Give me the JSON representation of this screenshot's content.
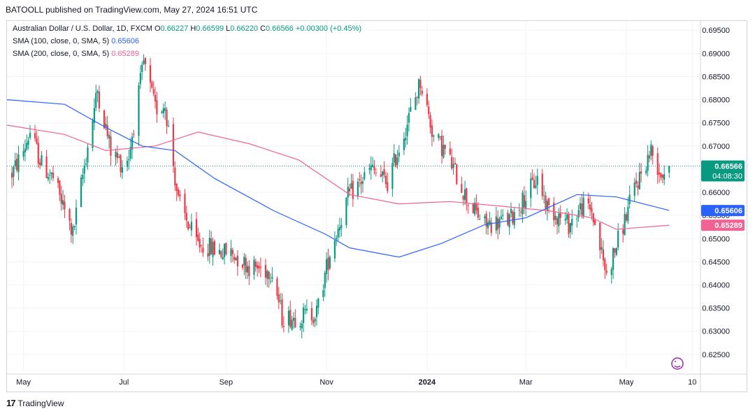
{
  "publisher_line": "BATOOLL published on TradingView.com, May 27, 2024 16:51 UTC",
  "legend": {
    "symbol_line": "Australian Dollar / U.S. Dollar, 1D, FXCM",
    "o_label": "O",
    "o": "0.66227",
    "h_label": "H",
    "h": "0.66599",
    "l_label": "L",
    "l": "0.66220",
    "c_label": "C",
    "c": "0.66566",
    "change": "+0.00300 (+0.45%)",
    "sma100_label": "SMA (100, close, 0, SMA, 5)",
    "sma100_value": "0.65606",
    "sma200_label": "SMA (200, close, 0, SMA, 5)",
    "sma200_value": "0.65289"
  },
  "price_badge": {
    "price": "0.66566",
    "countdown": "04:08:30"
  },
  "footer": {
    "brand_text": "TradingView",
    "logo_glyph": "17"
  },
  "colors": {
    "up": "#089981",
    "down": "#f23645",
    "sma100": "#2962ff",
    "sma200": "#f06292",
    "grid": "#f0f3fa"
  },
  "chart_data": {
    "type": "candlestick",
    "symbol": "AUDUSD",
    "timeframe": "1D",
    "y_ticks": [
      "0.69500",
      "0.69000",
      "0.68500",
      "0.68000",
      "0.67500",
      "0.67000",
      "0.66500",
      "0.66000",
      "0.65500",
      "0.65000",
      "0.64500",
      "0.64000",
      "0.63500",
      "0.63000",
      "0.62500"
    ],
    "ylim": [
      0.6215,
      0.697
    ],
    "x_ticks": [
      "May",
      "Jul",
      "Sep",
      "Nov",
      "2024",
      "Mar",
      "May",
      "10"
    ],
    "x_tick_bold": [
      false,
      false,
      false,
      false,
      true,
      false,
      false,
      false
    ],
    "x_tick_dates": [
      "2023-05-01",
      "2023-07-01",
      "2023-09-01",
      "2023-11-01",
      "2024-01-01",
      "2024-03-01",
      "2024-05-01",
      "2024-06-10"
    ],
    "xlim": [
      "2023-04-21",
      "2024-06-15"
    ],
    "price_path": [
      [
        "2023-04-24",
        0.664
      ],
      [
        "2023-05-01",
        0.669
      ],
      [
        "2023-05-05",
        0.673
      ],
      [
        "2023-05-12",
        0.666
      ],
      [
        "2023-05-19",
        0.663
      ],
      [
        "2023-05-31",
        0.651
      ],
      [
        "2023-06-09",
        0.67
      ],
      [
        "2023-06-15",
        0.682
      ],
      [
        "2023-06-23",
        0.669
      ],
      [
        "2023-06-30",
        0.666
      ],
      [
        "2023-07-04",
        0.668
      ],
      [
        "2023-07-13",
        0.688
      ],
      [
        "2023-07-20",
        0.678
      ],
      [
        "2023-07-26",
        0.679
      ],
      [
        "2023-08-03",
        0.658
      ],
      [
        "2023-08-14",
        0.649
      ],
      [
        "2023-08-30",
        0.647
      ],
      [
        "2023-09-04",
        0.647
      ],
      [
        "2023-09-15",
        0.644
      ],
      [
        "2023-09-29",
        0.643
      ],
      [
        "2023-10-05",
        0.633
      ],
      [
        "2023-10-13",
        0.633
      ],
      [
        "2023-10-26",
        0.634
      ],
      [
        "2023-11-03",
        0.647
      ],
      [
        "2023-11-14",
        0.659
      ],
      [
        "2023-11-28",
        0.665
      ],
      [
        "2023-12-08",
        0.662
      ],
      [
        "2023-12-20",
        0.675
      ],
      [
        "2023-12-28",
        0.684
      ],
      [
        "2024-01-05",
        0.672
      ],
      [
        "2024-01-12",
        0.669
      ],
      [
        "2024-01-26",
        0.658
      ],
      [
        "2024-02-05",
        0.653
      ],
      [
        "2024-02-20",
        0.654
      ],
      [
        "2024-03-08",
        0.663
      ],
      [
        "2024-03-14",
        0.657
      ],
      [
        "2024-03-27",
        0.653
      ],
      [
        "2024-04-04",
        0.657
      ],
      [
        "2024-04-10",
        0.656
      ],
      [
        "2024-04-19",
        0.642
      ],
      [
        "2024-04-30",
        0.654
      ],
      [
        "2024-05-06",
        0.661
      ],
      [
        "2024-05-16",
        0.669
      ],
      [
        "2024-05-22",
        0.664
      ],
      [
        "2024-05-27",
        0.6657
      ]
    ],
    "sma100": [
      [
        "2023-04-21",
        0.68
      ],
      [
        "2023-05-26",
        0.679
      ],
      [
        "2023-06-20",
        0.674
      ],
      [
        "2023-07-12",
        0.67
      ],
      [
        "2023-08-01",
        0.669
      ],
      [
        "2023-08-25",
        0.663
      ],
      [
        "2023-09-30",
        0.656
      ],
      [
        "2023-10-31",
        0.651
      ],
      [
        "2023-11-15",
        0.648
      ],
      [
        "2023-12-15",
        0.646
      ],
      [
        "2024-01-10",
        0.649
      ],
      [
        "2024-02-05",
        0.653
      ],
      [
        "2024-03-01",
        0.6545
      ],
      [
        "2024-04-01",
        0.6595
      ],
      [
        "2024-04-25",
        0.659
      ],
      [
        "2024-05-27",
        0.6561
      ]
    ],
    "sma200": [
      [
        "2023-04-21",
        0.6745
      ],
      [
        "2023-05-26",
        0.6725
      ],
      [
        "2023-06-20",
        0.669
      ],
      [
        "2023-07-20",
        0.67
      ],
      [
        "2023-08-15",
        0.673
      ],
      [
        "2023-09-15",
        0.6705
      ],
      [
        "2023-10-15",
        0.667
      ],
      [
        "2023-11-15",
        0.6595
      ],
      [
        "2023-12-15",
        0.6575
      ],
      [
        "2024-01-15",
        0.658
      ],
      [
        "2024-02-15",
        0.657
      ],
      [
        "2024-03-15",
        0.656
      ],
      [
        "2024-04-10",
        0.6545
      ],
      [
        "2024-04-25",
        0.652
      ],
      [
        "2024-05-27",
        0.6529
      ]
    ],
    "last_price": 0.66566
  }
}
